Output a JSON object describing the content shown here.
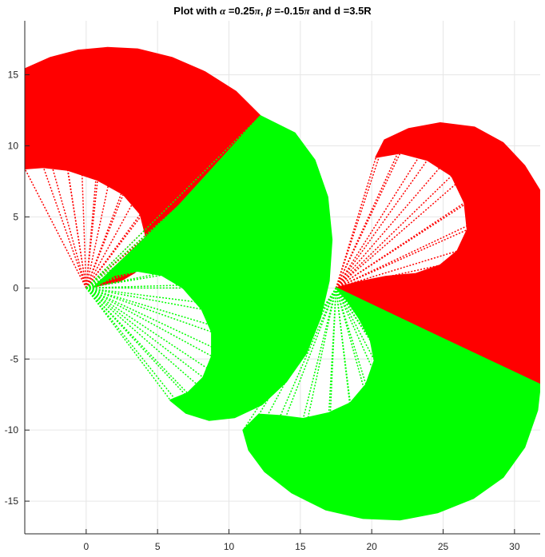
{
  "chart_data": {
    "type": "scatter",
    "title": {
      "text": "Plot with ",
      "alpha_symbol": "α",
      "alpha_value": " =0.25",
      "pi1": "π",
      "mid": ", ",
      "beta_symbol": "β",
      "beta_value": " =-0.15",
      "pi2": "π",
      "end": " and d =3.5R"
    },
    "xlabel": "",
    "ylabel": "",
    "xlim": [
      -4.3,
      31.8
    ],
    "ylim": [
      -17.3,
      18.8
    ],
    "x_ticks": [
      0,
      5,
      10,
      15,
      20,
      25,
      30
    ],
    "y_ticks": [
      -15,
      -10,
      -5,
      0,
      5,
      10,
      15
    ],
    "x_tick_labels": [
      "0",
      "5",
      "10",
      "15",
      "20",
      "25",
      "30"
    ],
    "y_tick_labels": [
      "-15",
      "-10",
      "-5",
      "0",
      "5",
      "10",
      "15"
    ],
    "grid": true,
    "marker": "*",
    "colors": {
      "red": "#ff0000",
      "green": "#00ff00",
      "grid": "#e6e6e6",
      "axis": "#262626"
    },
    "series": [
      {
        "color": "red",
        "origin": [
          0,
          0
        ],
        "boundary": [
          [
            -4.3,
            8.4
          ],
          [
            -3.0,
            8.5
          ],
          [
            -1.3,
            8.3
          ],
          [
            0.8,
            7.6
          ],
          [
            2.6,
            6.6
          ],
          [
            3.8,
            5.2
          ],
          [
            4.2,
            3.6
          ],
          [
            4.0,
            2.2
          ],
          [
            3.4,
            1.1
          ],
          [
            2.4,
            0.5
          ],
          [
            1.4,
            0.3
          ],
          [
            0.6,
            0.1
          ],
          [
            6.5,
            5.8
          ],
          [
            12.2,
            12.1
          ],
          [
            10.5,
            13.8
          ],
          [
            8.3,
            15.2
          ],
          [
            6.0,
            16.2
          ],
          [
            3.6,
            16.8
          ],
          [
            1.5,
            16.9
          ],
          [
            -0.6,
            16.7
          ],
          [
            -2.5,
            16.2
          ],
          [
            -4.3,
            15.4
          ]
        ]
      },
      {
        "color": "green",
        "origin": [
          0,
          0
        ],
        "boundary": [
          [
            0.6,
            0.1
          ],
          [
            2.0,
            0.9
          ],
          [
            3.6,
            1.2
          ],
          [
            5.3,
            0.9
          ],
          [
            6.8,
            0.0
          ],
          [
            8.1,
            -1.5
          ],
          [
            8.8,
            -3.1
          ],
          [
            8.8,
            -4.8
          ],
          [
            8.2,
            -6.3
          ],
          [
            7.1,
            -7.4
          ],
          [
            5.9,
            -7.9
          ],
          [
            7.0,
            -8.8
          ],
          [
            8.6,
            -9.3
          ],
          [
            10.4,
            -9.1
          ],
          [
            12.3,
            -8.2
          ],
          [
            14.0,
            -6.6
          ],
          [
            15.4,
            -4.6
          ],
          [
            16.4,
            -2.1
          ],
          [
            17.0,
            0.5
          ],
          [
            17.2,
            3.4
          ],
          [
            16.9,
            6.4
          ],
          [
            16.0,
            9.0
          ],
          [
            14.6,
            10.9
          ],
          [
            12.2,
            12.1
          ],
          [
            6.5,
            5.8
          ]
        ]
      },
      {
        "color": "red",
        "origin": [
          17.5,
          0
        ],
        "boundary": [
          [
            17.5,
            0.0
          ],
          [
            19.0,
            0.4
          ],
          [
            21.0,
            0.8
          ],
          [
            23.1,
            1.0
          ],
          [
            24.8,
            1.6
          ],
          [
            26.0,
            2.6
          ],
          [
            26.7,
            4.1
          ],
          [
            26.5,
            6.0
          ],
          [
            25.6,
            7.9
          ],
          [
            23.9,
            9.0
          ],
          [
            22.0,
            9.5
          ],
          [
            20.3,
            9.2
          ],
          [
            20.9,
            10.4
          ],
          [
            22.6,
            11.2
          ],
          [
            24.8,
            11.6
          ],
          [
            27.2,
            11.3
          ],
          [
            29.2,
            10.2
          ],
          [
            30.7,
            8.6
          ],
          [
            31.8,
            6.8
          ],
          [
            31.8,
            -6.8
          ],
          [
            24.6,
            -3.4
          ],
          [
            17.5,
            0.0
          ]
        ]
      },
      {
        "color": "green",
        "origin": [
          17.5,
          0
        ],
        "boundary": [
          [
            17.5,
            0.0
          ],
          [
            24.6,
            -3.4
          ],
          [
            31.8,
            -6.8
          ],
          [
            31.6,
            -8.6
          ],
          [
            30.7,
            -11.2
          ],
          [
            29.2,
            -13.3
          ],
          [
            27.1,
            -14.8
          ],
          [
            24.6,
            -15.8
          ],
          [
            22.0,
            -16.3
          ],
          [
            19.4,
            -16.2
          ],
          [
            16.8,
            -15.6
          ],
          [
            14.4,
            -14.4
          ],
          [
            12.5,
            -12.9
          ],
          [
            11.4,
            -11.4
          ],
          [
            11.0,
            -10.0
          ],
          [
            12.1,
            -8.9
          ],
          [
            13.6,
            -9.0
          ],
          [
            15.2,
            -9.2
          ],
          [
            17.0,
            -8.8
          ],
          [
            18.5,
            -8.1
          ],
          [
            19.6,
            -6.8
          ],
          [
            20.2,
            -5.1
          ],
          [
            19.9,
            -3.6
          ],
          [
            19.1,
            -2.1
          ],
          [
            18.3,
            -0.9
          ]
        ]
      }
    ]
  }
}
